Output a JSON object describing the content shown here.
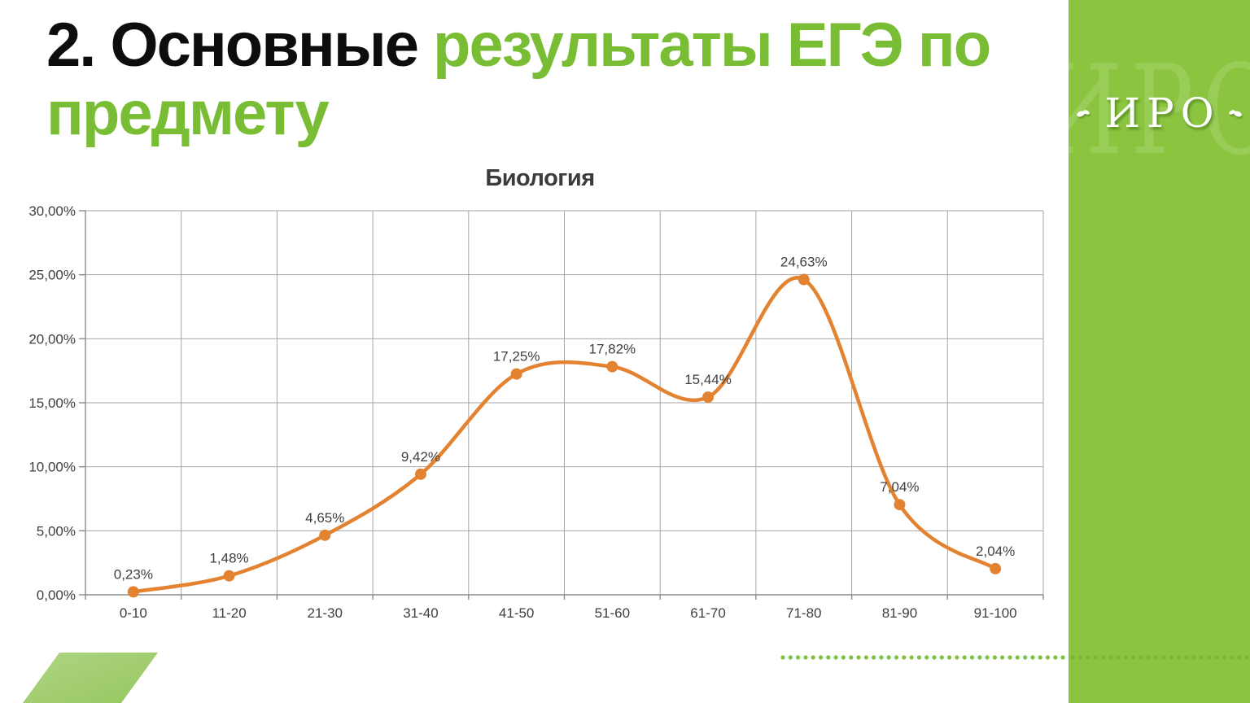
{
  "slide": {
    "title": {
      "part_black": "2. Основные",
      "part_green": "результаты ЕГЭ по предмету"
    },
    "sidebar": {
      "logo_text": "ИРО",
      "watermark_text": "ИРО"
    },
    "colors": {
      "title_green": "#79bd35",
      "sidebar_green": "#8bc540",
      "series_orange": "#e38331",
      "grid_gray": "#a6a6a6",
      "axis_gray": "#8c8c8c",
      "label_dark": "#3f3f3f",
      "parallelogram_light_green": "#aed584",
      "parallelogram_dark_green": "#97c75f",
      "dot_green": "#7dc240"
    }
  },
  "chart_data": {
    "type": "line",
    "title": "Биология",
    "categories": [
      "0-10",
      "11-20",
      "21-30",
      "31-40",
      "41-50",
      "51-60",
      "61-70",
      "71-80",
      "81-90",
      "91-100"
    ],
    "values": [
      0.23,
      1.48,
      4.65,
      9.42,
      17.25,
      17.82,
      15.44,
      24.63,
      7.04,
      2.04
    ],
    "point_labels": [
      "0,23%",
      "1,48%",
      "4,65%",
      "9,42%",
      "17,25%",
      "17,82%",
      "15,44%",
      "24,63%",
      "7,04%",
      "2,04%"
    ],
    "y_tick_labels": [
      "0,00%",
      "5,00%",
      "10,00%",
      "15,00%",
      "20,00%",
      "25,00%",
      "30,00%"
    ],
    "ylim": [
      0,
      30
    ],
    "y_step": 5,
    "xlabel": "",
    "ylabel": "",
    "grid": true,
    "legend": "none",
    "smooth": true,
    "marker": "circle",
    "series_color": "#e38331"
  }
}
